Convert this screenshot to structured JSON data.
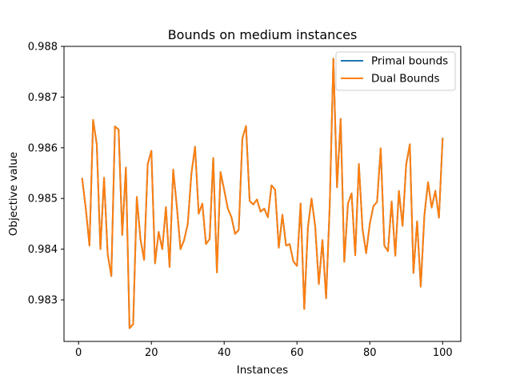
{
  "chart_data": {
    "type": "line",
    "title": "Bounds on medium instances",
    "xlabel": "Instances",
    "ylabel": "Objective value",
    "xlim": [
      -4,
      105
    ],
    "ylim": [
      0.98218,
      0.988
    ],
    "xticks": [
      0,
      20,
      40,
      60,
      80,
      100
    ],
    "xtick_labels": [
      "0",
      "20",
      "40",
      "60",
      "80",
      "100"
    ],
    "yticks": [
      0.983,
      0.984,
      0.985,
      0.986,
      0.987,
      0.988
    ],
    "ytick_labels": [
      "0.983",
      "0.984",
      "0.985",
      "0.986",
      "0.987",
      "0.988"
    ],
    "grid": false,
    "legend_position": "upper right",
    "x": [
      1,
      2,
      3,
      4,
      5,
      6,
      7,
      8,
      9,
      10,
      11,
      12,
      13,
      14,
      15,
      16,
      17,
      18,
      19,
      20,
      21,
      22,
      23,
      24,
      25,
      26,
      27,
      28,
      29,
      30,
      31,
      32,
      33,
      34,
      35,
      36,
      37,
      38,
      39,
      40,
      41,
      42,
      43,
      44,
      45,
      46,
      47,
      48,
      49,
      50,
      51,
      52,
      53,
      54,
      55,
      56,
      57,
      58,
      59,
      60,
      61,
      62,
      63,
      64,
      65,
      66,
      67,
      68,
      69,
      70,
      71,
      72,
      73,
      74,
      75,
      76,
      77,
      78,
      79,
      80,
      81,
      82,
      83,
      84,
      85,
      86,
      87,
      88,
      89,
      90,
      91,
      92,
      93,
      94,
      95,
      96,
      97,
      98,
      99,
      100
    ],
    "series": [
      {
        "name": "Primal bounds",
        "color": "#1f77b4",
        "values": [
          0.98539,
          0.98479,
          0.98407,
          0.98655,
          0.98607,
          0.984,
          0.98541,
          0.9839,
          0.98347,
          0.98642,
          0.98636,
          0.98428,
          0.98561,
          0.98244,
          0.98252,
          0.98503,
          0.9842,
          0.98379,
          0.98568,
          0.98594,
          0.98372,
          0.98434,
          0.984,
          0.98483,
          0.98365,
          0.98557,
          0.98484,
          0.984,
          0.98418,
          0.9845,
          0.98549,
          0.98602,
          0.9847,
          0.9849,
          0.9841,
          0.9842,
          0.9858,
          0.98354,
          0.98552,
          0.98517,
          0.9848,
          0.98463,
          0.9843,
          0.98438,
          0.98618,
          0.98643,
          0.98495,
          0.98488,
          0.98498,
          0.98474,
          0.9848,
          0.98463,
          0.98526,
          0.98517,
          0.98403,
          0.98468,
          0.98407,
          0.9841,
          0.98376,
          0.98367,
          0.9849,
          0.98282,
          0.98443,
          0.985,
          0.98445,
          0.98331,
          0.98418,
          0.98303,
          0.98487,
          0.98776,
          0.98522,
          0.98657,
          0.98375,
          0.9849,
          0.9851,
          0.98388,
          0.98568,
          0.9844,
          0.98392,
          0.9845,
          0.98485,
          0.98493,
          0.98599,
          0.98407,
          0.98396,
          0.98494,
          0.98387,
          0.98515,
          0.98446,
          0.98567,
          0.98607,
          0.98353,
          0.98455,
          0.98326,
          0.98467,
          0.98532,
          0.98482,
          0.98515,
          0.98462,
          0.98618
        ]
      },
      {
        "name": "Dual Bounds",
        "color": "#ff7f0e",
        "values": [
          0.98539,
          0.98479,
          0.98407,
          0.98655,
          0.98607,
          0.984,
          0.98541,
          0.9839,
          0.98347,
          0.98642,
          0.98636,
          0.98428,
          0.98561,
          0.98244,
          0.98252,
          0.98503,
          0.9842,
          0.98379,
          0.98568,
          0.98594,
          0.98372,
          0.98434,
          0.984,
          0.98483,
          0.98365,
          0.98557,
          0.98484,
          0.984,
          0.98418,
          0.9845,
          0.98549,
          0.98602,
          0.9847,
          0.9849,
          0.9841,
          0.9842,
          0.9858,
          0.98354,
          0.98552,
          0.98517,
          0.9848,
          0.98463,
          0.9843,
          0.98438,
          0.98618,
          0.98643,
          0.98495,
          0.98488,
          0.98498,
          0.98474,
          0.9848,
          0.98463,
          0.98526,
          0.98517,
          0.98403,
          0.98468,
          0.98407,
          0.9841,
          0.98376,
          0.98367,
          0.9849,
          0.98282,
          0.98443,
          0.985,
          0.98445,
          0.98331,
          0.98418,
          0.98303,
          0.98487,
          0.98776,
          0.98522,
          0.98657,
          0.98375,
          0.9849,
          0.9851,
          0.98388,
          0.98568,
          0.9844,
          0.98392,
          0.9845,
          0.98485,
          0.98493,
          0.98599,
          0.98407,
          0.98396,
          0.98494,
          0.98387,
          0.98515,
          0.98446,
          0.98567,
          0.98607,
          0.98353,
          0.98455,
          0.98326,
          0.98467,
          0.98532,
          0.98482,
          0.98515,
          0.98462,
          0.98618
        ]
      }
    ]
  }
}
